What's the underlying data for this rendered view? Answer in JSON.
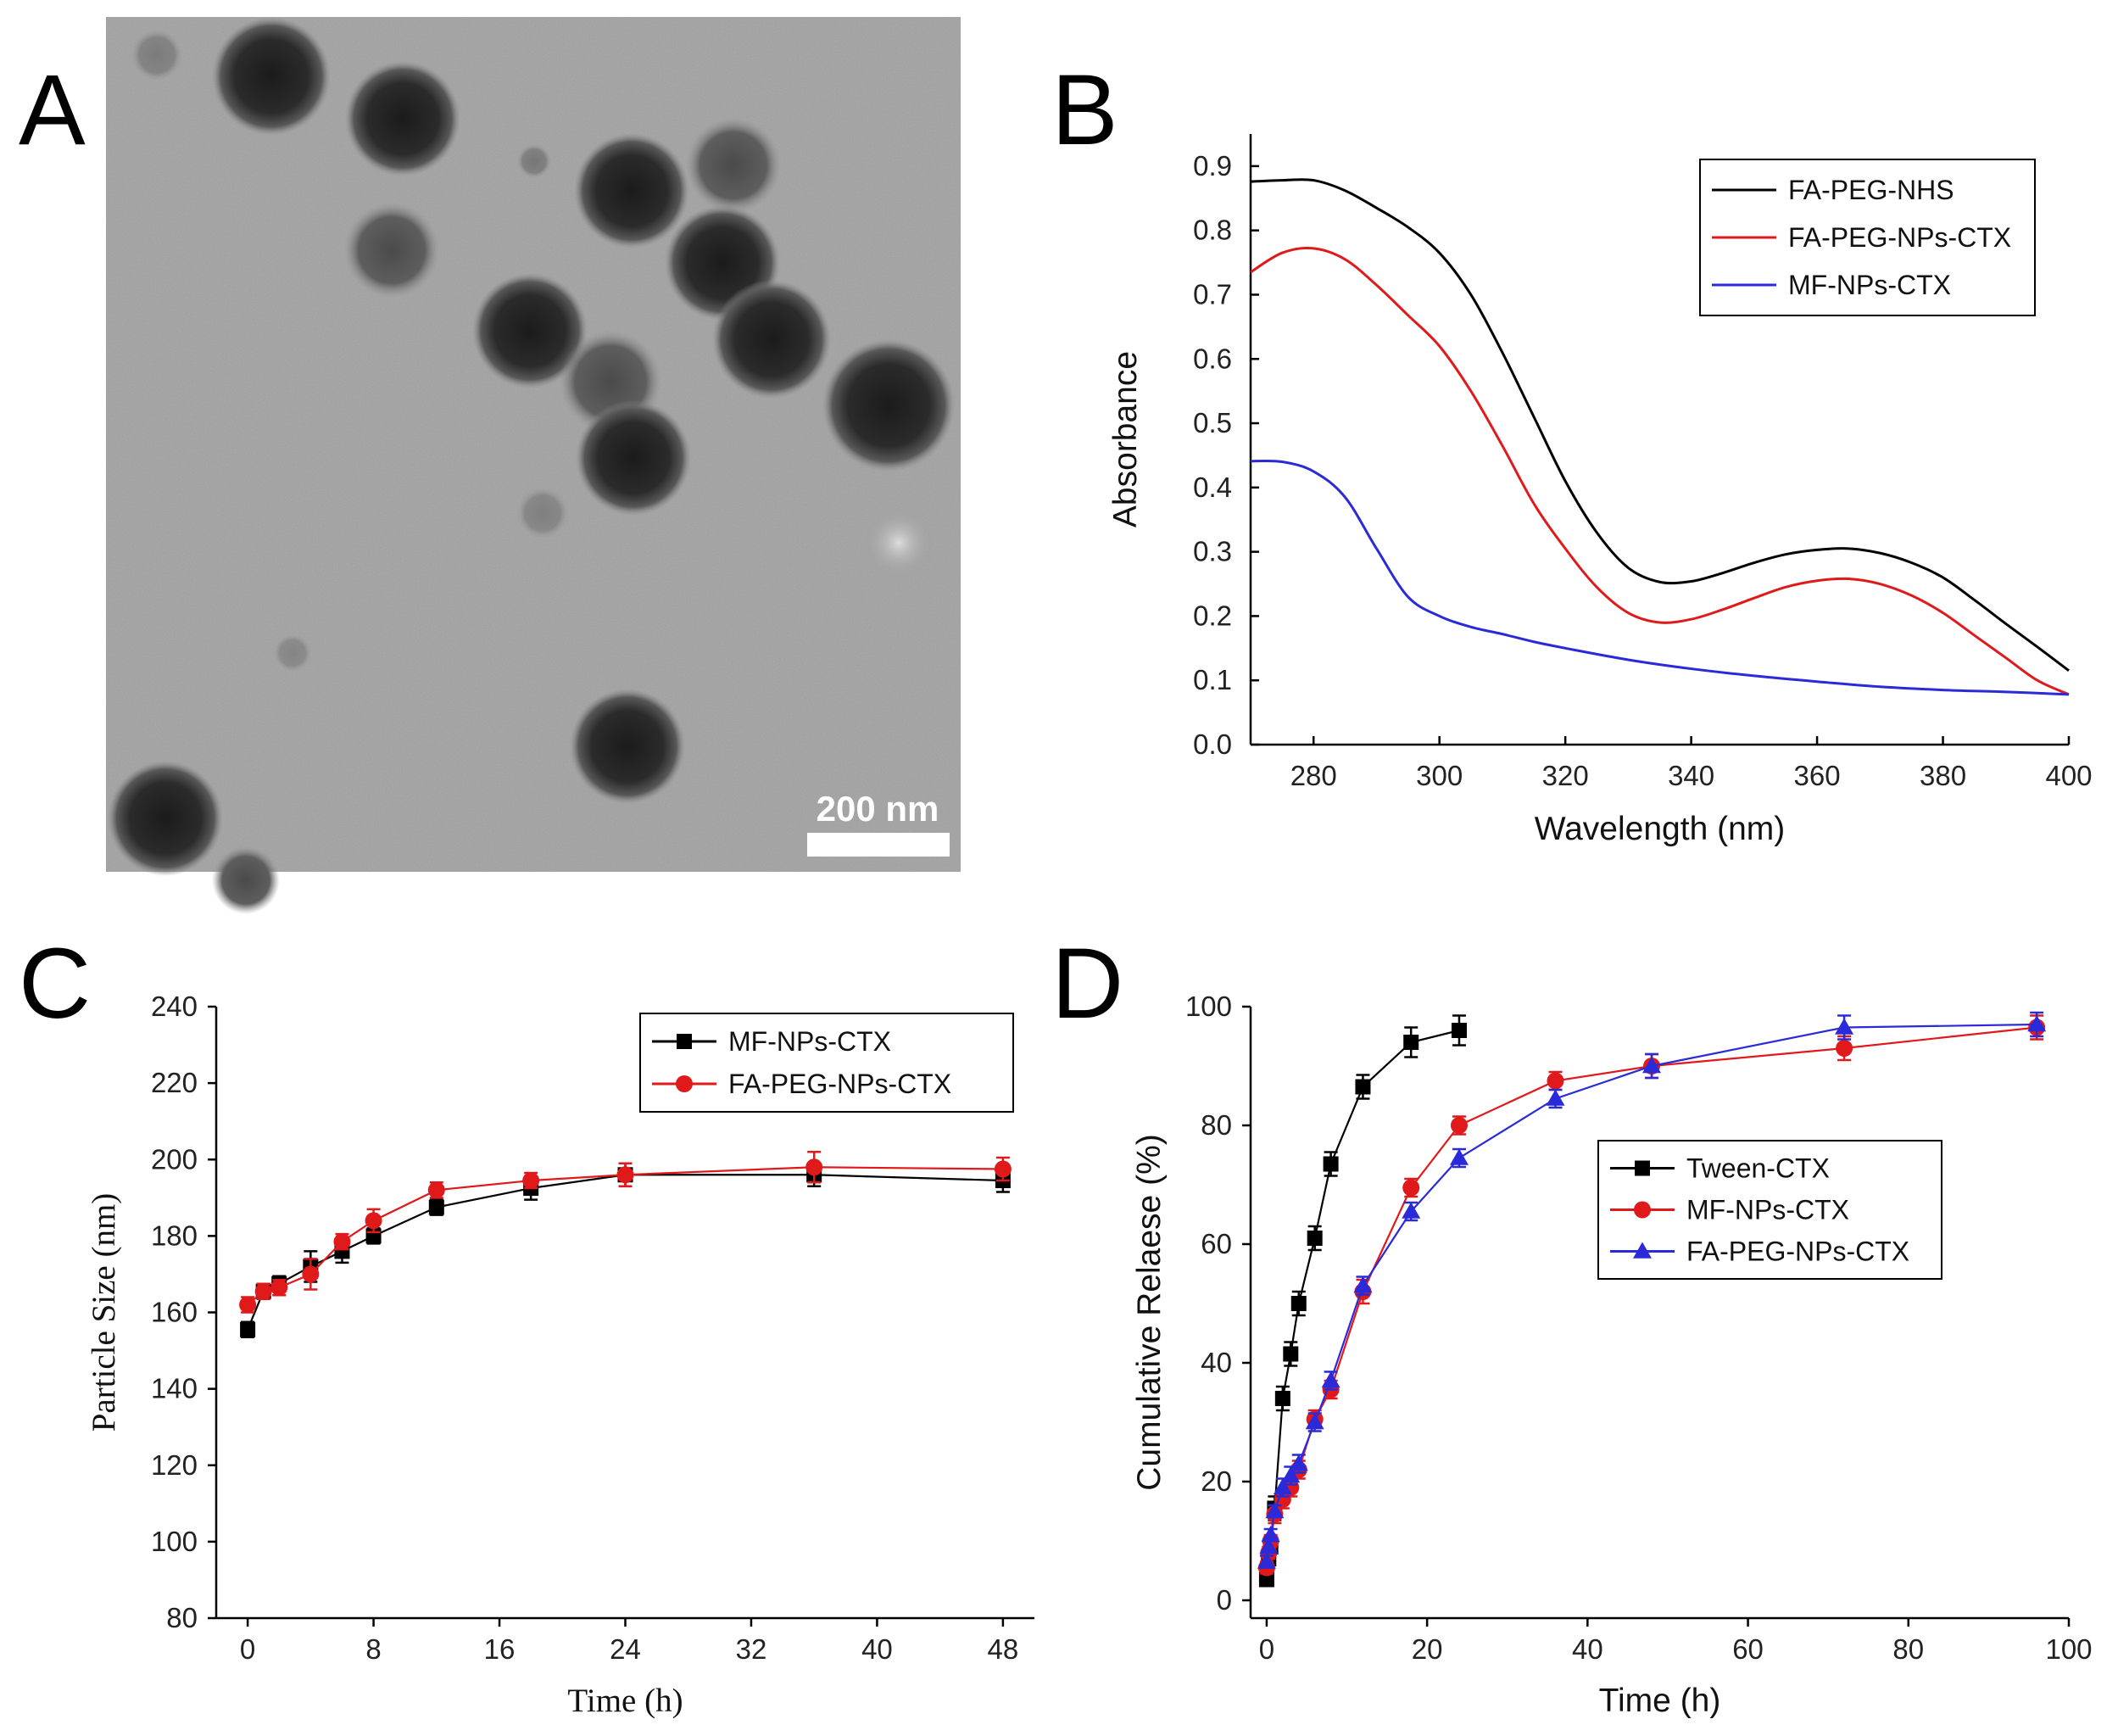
{
  "figure": {
    "panel_letters": [
      "A",
      "B",
      "C",
      "D"
    ],
    "scale_bar_label": "200 nm"
  },
  "chart_data": [
    {
      "panel": "B",
      "type": "line",
      "title": "",
      "xlabel": "Wavelength (nm)",
      "ylabel": "Absorbance",
      "xlim": [
        270,
        400
      ],
      "ylim": [
        0.0,
        0.95
      ],
      "xticks": [
        280,
        300,
        320,
        340,
        360,
        380,
        400
      ],
      "yticks": [
        0.0,
        0.1,
        0.2,
        0.3,
        0.4,
        0.5,
        0.6,
        0.7,
        0.8,
        0.9
      ],
      "ytick_labels": [
        "0.0",
        "0.1",
        "0.2",
        "0.3",
        "0.4",
        "0.5",
        "0.6",
        "0.7",
        "0.8",
        "0.9"
      ],
      "legend_position": "top-right",
      "series": [
        {
          "name": "FA-PEG-NHS",
          "color": "#000000",
          "x": [
            270,
            275,
            280,
            285,
            290,
            295,
            300,
            305,
            310,
            315,
            320,
            325,
            330,
            335,
            340,
            345,
            350,
            355,
            360,
            365,
            370,
            375,
            380,
            385,
            390,
            395,
            400
          ],
          "y": [
            0.876,
            0.878,
            0.878,
            0.862,
            0.835,
            0.805,
            0.765,
            0.7,
            0.61,
            0.51,
            0.41,
            0.33,
            0.275,
            0.253,
            0.254,
            0.267,
            0.283,
            0.296,
            0.303,
            0.305,
            0.298,
            0.283,
            0.26,
            0.225,
            0.188,
            0.152,
            0.115
          ]
        },
        {
          "name": "FA-PEG-NPs-CTX",
          "color": "#e0191b",
          "x": [
            270,
            275,
            280,
            285,
            290,
            295,
            300,
            305,
            310,
            315,
            320,
            325,
            330,
            335,
            340,
            345,
            350,
            355,
            360,
            365,
            370,
            375,
            380,
            385,
            390,
            395,
            400
          ],
          "y": [
            0.735,
            0.765,
            0.772,
            0.755,
            0.715,
            0.668,
            0.62,
            0.55,
            0.465,
            0.375,
            0.305,
            0.245,
            0.205,
            0.19,
            0.195,
            0.21,
            0.228,
            0.245,
            0.255,
            0.258,
            0.25,
            0.232,
            0.205,
            0.17,
            0.135,
            0.1,
            0.078
          ]
        },
        {
          "name": "MF-NPs-CTX",
          "color": "#2a2ad8",
          "x": [
            270,
            275,
            280,
            285,
            290,
            295,
            300,
            305,
            310,
            315,
            320,
            330,
            340,
            350,
            360,
            370,
            380,
            390,
            400
          ],
          "y": [
            0.441,
            0.44,
            0.425,
            0.385,
            0.305,
            0.23,
            0.2,
            0.183,
            0.172,
            0.16,
            0.15,
            0.132,
            0.118,
            0.107,
            0.098,
            0.09,
            0.085,
            0.082,
            0.078
          ]
        }
      ]
    },
    {
      "panel": "C",
      "type": "line",
      "title": "",
      "xlabel": "Time (h)",
      "ylabel": "Particle Size (nm)",
      "xlim": [
        -2,
        50
      ],
      "ylim": [
        80,
        240
      ],
      "xticks": [
        0,
        8,
        16,
        24,
        32,
        40,
        48
      ],
      "yticks": [
        80,
        100,
        120,
        140,
        160,
        180,
        200,
        220,
        240
      ],
      "legend_position": "top-right",
      "series": [
        {
          "name": "MF-NPs-CTX",
          "color": "#000000",
          "marker": "square",
          "x": [
            0,
            1,
            2,
            4,
            6,
            8,
            12,
            18,
            24,
            36,
            48
          ],
          "y": [
            155.5,
            165.5,
            167.5,
            172,
            176,
            180,
            187.5,
            192.5,
            196,
            196,
            194.5
          ],
          "err": [
            2,
            2,
            2,
            4,
            3,
            2,
            2,
            3,
            3,
            3,
            3
          ]
        },
        {
          "name": "FA-PEG-NPs-CTX",
          "color": "#e0191b",
          "marker": "circle",
          "x": [
            0,
            1,
            2,
            4,
            6,
            8,
            12,
            18,
            24,
            36,
            48
          ],
          "y": [
            162,
            165.5,
            166.5,
            170,
            178.5,
            184,
            192,
            194.5,
            196,
            198,
            197.5
          ],
          "err": [
            2,
            2,
            2,
            4,
            2,
            3,
            2,
            2,
            3,
            4,
            3
          ]
        }
      ]
    },
    {
      "panel": "D",
      "type": "line",
      "title": "",
      "xlabel": "Time (h)",
      "ylabel": "Cumulative Relaese (%)",
      "xlim": [
        -2,
        100
      ],
      "ylim": [
        -3,
        100
      ],
      "xticks": [
        0,
        20,
        40,
        60,
        80,
        100
      ],
      "yticks": [
        0,
        20,
        40,
        60,
        80,
        100
      ],
      "legend_position": "center-left",
      "series": [
        {
          "name": "Tween-CTX",
          "color": "#000000",
          "marker": "square",
          "x": [
            0,
            0.25,
            0.5,
            1,
            2,
            3,
            4,
            6,
            8,
            12,
            18,
            24
          ],
          "y": [
            3.5,
            7,
            9,
            15.5,
            34,
            41.5,
            50,
            61,
            73.5,
            86.5,
            94,
            96
          ],
          "err": [
            1,
            1,
            1,
            2,
            2,
            2,
            2,
            2,
            2,
            2,
            2.5,
            2.5
          ]
        },
        {
          "name": "MF-NPs-CTX",
          "color": "#e0191b",
          "marker": "circle",
          "x": [
            0,
            0.25,
            0.5,
            1,
            2,
            3,
            4,
            6,
            8,
            12,
            18,
            24,
            36,
            48,
            72,
            96
          ],
          "y": [
            5.5,
            8,
            10,
            14.5,
            17,
            19,
            22,
            30.5,
            35.5,
            52,
            69.5,
            80,
            87.5,
            90,
            93,
            96.5
          ],
          "err": [
            1,
            1,
            1,
            1.5,
            1.5,
            1.5,
            1.5,
            1.5,
            1.5,
            2,
            1.5,
            1.5,
            1.5,
            2,
            2,
            2
          ]
        },
        {
          "name": "FA-PEG-NPs-CTX",
          "color": "#2a2ad8",
          "marker": "triangle",
          "x": [
            0,
            0.25,
            0.5,
            1,
            2,
            3,
            4,
            6,
            8,
            12,
            18,
            24,
            36,
            48,
            72,
            96
          ],
          "y": [
            6.5,
            9,
            11,
            15,
            19,
            21,
            23,
            30,
            37,
            53,
            65.5,
            74.5,
            84.5,
            90,
            96.5,
            97
          ],
          "err": [
            1,
            1,
            1,
            1,
            1.5,
            1.5,
            1.5,
            1.5,
            1.5,
            1.5,
            1.5,
            1.5,
            1.5,
            2,
            2,
            2
          ]
        }
      ]
    }
  ]
}
